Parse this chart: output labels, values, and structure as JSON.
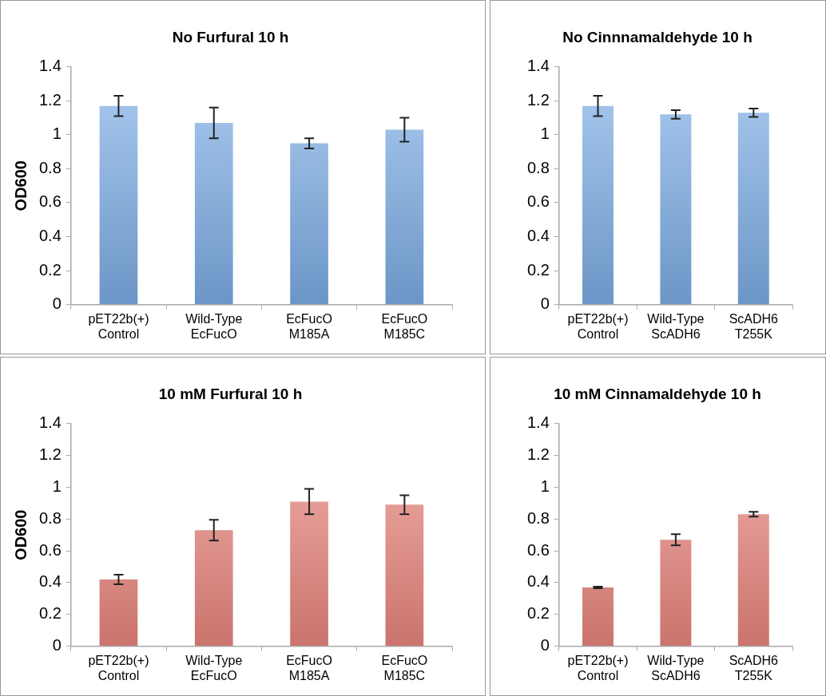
{
  "chart_data": [
    {
      "type": "bar",
      "title": "No Furfural 10 h",
      "ylabel": "OD600",
      "categories": [
        "pET22b(+)\nControl",
        "Wild-Type\nEcFucO",
        "EcFucO\nM185A",
        "EcFucO\nM185C"
      ],
      "values": [
        1.17,
        1.07,
        0.95,
        1.03
      ],
      "errors": [
        0.06,
        0.09,
        0.03,
        0.07
      ],
      "color": "#7fb1ea",
      "ylim": [
        0,
        1.4
      ],
      "yticks": [
        0,
        0.2,
        0.4,
        0.6,
        0.8,
        1,
        1.2,
        1.4
      ],
      "grid": false
    },
    {
      "type": "bar",
      "title": "No Cinnnamaldehyde 10 h",
      "categories": [
        "pET22b(+)\nControl",
        "Wild-Type\nScADH6",
        "ScADH6\nT255K"
      ],
      "values": [
        1.17,
        1.12,
        1.13
      ],
      "errors": [
        0.06,
        0.025,
        0.025
      ],
      "color": "#7fb1ea",
      "ylim": [
        0,
        1.4
      ],
      "yticks": [
        0,
        0.2,
        0.4,
        0.6,
        0.8,
        1,
        1.2,
        1.4
      ],
      "grid": false
    },
    {
      "type": "bar",
      "title": "10 mM Furfural 10 h",
      "ylabel": "OD600",
      "categories": [
        "pET22b(+)\nControl",
        "Wild-Type\nEcFucO",
        "EcFucO\nM185A",
        "EcFucO\nM185C"
      ],
      "values": [
        0.42,
        0.73,
        0.91,
        0.89
      ],
      "errors": [
        0.03,
        0.065,
        0.08,
        0.06
      ],
      "color": "#ee8880",
      "ylim": [
        0,
        1.4
      ],
      "yticks": [
        0,
        0.2,
        0.4,
        0.6,
        0.8,
        1,
        1.2,
        1.4
      ],
      "grid": false
    },
    {
      "type": "bar",
      "title": "10 mM Cinnamaldehyde 10 h",
      "categories": [
        "pET22b(+)\nControl",
        "Wild-Type\nScADH6",
        "ScADH6\nT255K"
      ],
      "values": [
        0.37,
        0.67,
        0.83
      ],
      "errors": [
        0.005,
        0.035,
        0.015
      ],
      "color": "#ee8880",
      "ylim": [
        0,
        1.4
      ],
      "yticks": [
        0,
        0.2,
        0.4,
        0.6,
        0.8,
        1,
        1.2,
        1.4
      ],
      "grid": false
    }
  ]
}
